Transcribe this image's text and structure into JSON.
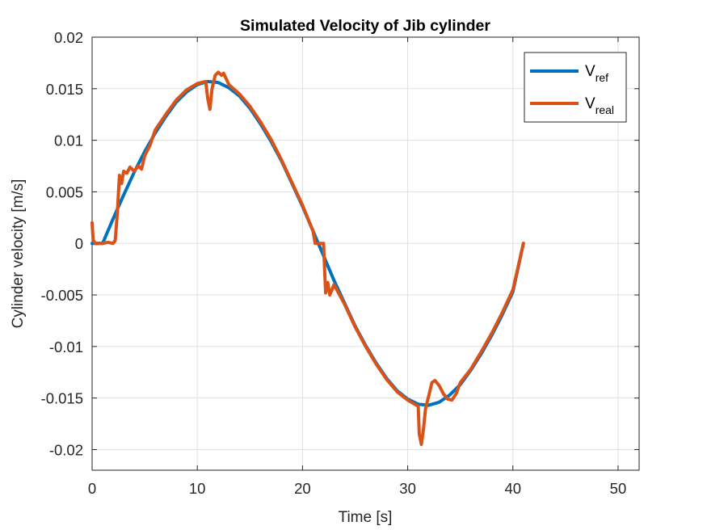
{
  "chart_data": {
    "type": "line",
    "title": "Simulated Velocity of Jib cylinder",
    "xlabel": "Time [s]",
    "ylabel": "Cylinder velocity [m/s]",
    "xlim": [
      0,
      52
    ],
    "ylim": [
      -0.022,
      0.02
    ],
    "x_ticks": [
      "0",
      "10",
      "20",
      "30",
      "40",
      "50"
    ],
    "y_ticks": [
      "0.02",
      "0.015",
      "0.01",
      "0.005",
      "0",
      "-0.005",
      "-0.01",
      "-0.015",
      "-0.02"
    ],
    "grid": true,
    "legend_position": "top-right",
    "series": [
      {
        "name": "V_ref",
        "legend_main": "V",
        "legend_sub": "ref",
        "color": "#0072BD",
        "points": [
          [
            0,
            0
          ],
          [
            1,
            0
          ],
          [
            2,
            0.0024
          ],
          [
            3,
            0.0047
          ],
          [
            4,
            0.0069
          ],
          [
            5,
            0.0089
          ],
          [
            6,
            0.0107
          ],
          [
            7,
            0.0123
          ],
          [
            8,
            0.0137
          ],
          [
            9,
            0.0147
          ],
          [
            10,
            0.0154
          ],
          [
            11,
            0.0157
          ],
          [
            12,
            0.0156
          ],
          [
            13,
            0.0151
          ],
          [
            14,
            0.0143
          ],
          [
            15,
            0.0131
          ],
          [
            16,
            0.0116
          ],
          [
            17,
            0.0099
          ],
          [
            18,
            0.008
          ],
          [
            19,
            0.0058
          ],
          [
            20,
            0.0036
          ],
          [
            21,
            0.0012
          ],
          [
            22,
            -0.0012
          ],
          [
            23,
            -0.0036
          ],
          [
            24,
            -0.0058
          ],
          [
            25,
            -0.008
          ],
          [
            26,
            -0.0099
          ],
          [
            27,
            -0.0116
          ],
          [
            28,
            -0.0131
          ],
          [
            29,
            -0.0143
          ],
          [
            30,
            -0.0151
          ],
          [
            31,
            -0.0156
          ],
          [
            32,
            -0.0157
          ],
          [
            33,
            -0.0154
          ],
          [
            34,
            -0.0147
          ],
          [
            35,
            -0.0137
          ],
          [
            36,
            -0.0123
          ],
          [
            37,
            -0.0107
          ],
          [
            38,
            -0.0089
          ],
          [
            39,
            -0.0069
          ],
          [
            40,
            -0.0047
          ],
          [
            41,
            0
          ]
        ]
      },
      {
        "name": "V_real",
        "legend_main": "V",
        "legend_sub": "real",
        "color": "#D95319",
        "points": [
          [
            0,
            0.002
          ],
          [
            0.1,
            0.0003
          ],
          [
            0.3,
            0
          ],
          [
            1,
            0
          ],
          [
            1.5,
            0.0001
          ],
          [
            2.0,
            0
          ],
          [
            2.2,
            0.0003
          ],
          [
            2.4,
            0.003
          ],
          [
            2.6,
            0.0066
          ],
          [
            2.8,
            0.0058
          ],
          [
            3.0,
            0.007
          ],
          [
            3.3,
            0.0068
          ],
          [
            3.6,
            0.0074
          ],
          [
            4.0,
            0.007
          ],
          [
            4.4,
            0.0075
          ],
          [
            4.7,
            0.0072
          ],
          [
            5.0,
            0.0085
          ],
          [
            5.5,
            0.0095
          ],
          [
            6,
            0.011
          ],
          [
            7,
            0.0125
          ],
          [
            8,
            0.0139
          ],
          [
            9,
            0.0149
          ],
          [
            10,
            0.0155
          ],
          [
            10.8,
            0.0157
          ],
          [
            11.0,
            0.014
          ],
          [
            11.2,
            0.013
          ],
          [
            11.4,
            0.015
          ],
          [
            11.7,
            0.0163
          ],
          [
            12.0,
            0.0166
          ],
          [
            12.3,
            0.0163
          ],
          [
            12.5,
            0.0165
          ],
          [
            13,
            0.0154
          ],
          [
            14,
            0.0145
          ],
          [
            15,
            0.0133
          ],
          [
            16,
            0.0118
          ],
          [
            17,
            0.0101
          ],
          [
            18,
            0.0081
          ],
          [
            19,
            0.0059
          ],
          [
            20,
            0.0037
          ],
          [
            21,
            0.0012
          ],
          [
            21.2,
            0
          ],
          [
            22.0,
            0
          ],
          [
            22.1,
            -0.0025
          ],
          [
            22.2,
            -0.0048
          ],
          [
            22.4,
            -0.0038
          ],
          [
            22.6,
            -0.005
          ],
          [
            23,
            -0.004
          ],
          [
            24,
            -0.0059
          ],
          [
            25,
            -0.0081
          ],
          [
            26,
            -0.01
          ],
          [
            27,
            -0.0117
          ],
          [
            28,
            -0.0132
          ],
          [
            29,
            -0.0144
          ],
          [
            30,
            -0.0152
          ],
          [
            30.5,
            -0.0155
          ],
          [
            31.0,
            -0.0158
          ],
          [
            31.1,
            -0.0185
          ],
          [
            31.3,
            -0.0195
          ],
          [
            31.5,
            -0.018
          ],
          [
            31.7,
            -0.016
          ],
          [
            32.0,
            -0.0148
          ],
          [
            32.3,
            -0.0135
          ],
          [
            32.6,
            -0.0133
          ],
          [
            33.0,
            -0.0138
          ],
          [
            33.4,
            -0.0146
          ],
          [
            33.8,
            -0.0151
          ],
          [
            34.2,
            -0.0152
          ],
          [
            34.6,
            -0.0146
          ],
          [
            35,
            -0.0135
          ],
          [
            36,
            -0.0122
          ],
          [
            37,
            -0.0105
          ],
          [
            38,
            -0.0087
          ],
          [
            39,
            -0.0067
          ],
          [
            40,
            -0.0045
          ],
          [
            41,
            0
          ]
        ]
      }
    ]
  }
}
